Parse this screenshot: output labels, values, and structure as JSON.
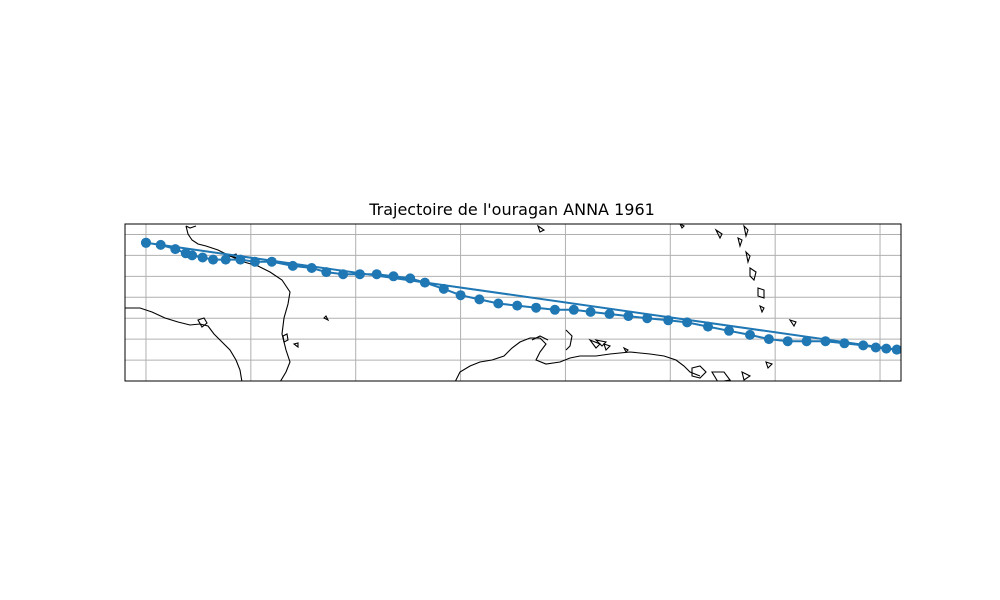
{
  "title": "Trajectoire de l'ouragan ANNA 1961",
  "colors": {
    "track": "#1f77b4",
    "grid": "#b0b0b0",
    "coast": "#000000",
    "frame": "#000000"
  },
  "map": {
    "projection": "plate-carree",
    "lon_range": [
      -92,
      -55
    ],
    "lat_range": [
      8,
      15.5
    ],
    "grid": true,
    "grid_lon": [
      -91,
      -86,
      -81,
      -76,
      -71,
      -66,
      -61,
      -56
    ],
    "grid_lat": [
      9,
      10,
      11,
      12,
      13,
      14,
      15
    ]
  },
  "track": {
    "name": "ANNA 1961",
    "marker": "circle",
    "points": [
      [
        -91.0,
        14.6
      ],
      [
        -90.3,
        14.5
      ],
      [
        -89.6,
        14.3
      ],
      [
        -89.1,
        14.1
      ],
      [
        -88.8,
        14.0
      ],
      [
        -88.3,
        13.9
      ],
      [
        -87.8,
        13.8
      ],
      [
        -87.2,
        13.8
      ],
      [
        -86.5,
        13.8
      ],
      [
        -85.8,
        13.7
      ],
      [
        -85.0,
        13.7
      ],
      [
        -84.0,
        13.5
      ],
      [
        -83.1,
        13.4
      ],
      [
        -82.4,
        13.2
      ],
      [
        -81.6,
        13.1
      ],
      [
        -80.8,
        13.1
      ],
      [
        -80.0,
        13.1
      ],
      [
        -79.2,
        13.0
      ],
      [
        -78.4,
        12.9
      ],
      [
        -77.7,
        12.7
      ],
      [
        -76.8,
        12.4
      ],
      [
        -76.0,
        12.1
      ],
      [
        -75.1,
        11.9
      ],
      [
        -74.2,
        11.7
      ],
      [
        -73.3,
        11.6
      ],
      [
        -72.4,
        11.5
      ],
      [
        -71.5,
        11.4
      ],
      [
        -70.6,
        11.4
      ],
      [
        -69.8,
        11.3
      ],
      [
        -68.9,
        11.2
      ],
      [
        -68.0,
        11.1
      ],
      [
        -67.1,
        11.0
      ],
      [
        -66.1,
        10.9
      ],
      [
        -65.2,
        10.8
      ],
      [
        -64.2,
        10.6
      ],
      [
        -63.2,
        10.4
      ],
      [
        -62.2,
        10.2
      ],
      [
        -61.3,
        10.0
      ],
      [
        -60.4,
        9.9
      ],
      [
        -59.5,
        9.9
      ],
      [
        -58.6,
        9.9
      ],
      [
        -57.7,
        9.8
      ],
      [
        -56.8,
        9.7
      ],
      [
        -56.2,
        9.6
      ],
      [
        -55.7,
        9.55
      ],
      [
        -55.2,
        9.5
      ],
      [
        -54.7,
        9.45
      ],
      [
        -55.2,
        9.5
      ],
      [
        -91.0,
        14.6
      ]
    ]
  }
}
